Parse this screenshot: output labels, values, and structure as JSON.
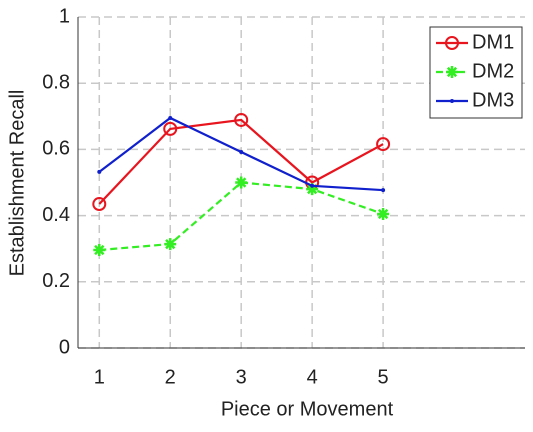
{
  "chart_data": {
    "type": "line",
    "xlabel": "Piece or Movement",
    "ylabel": "Establishment Recall",
    "x": [
      1,
      2,
      3,
      4,
      5
    ],
    "series": [
      {
        "name": "DM1",
        "color": "#e8141e",
        "marker": "circle",
        "dash": "solid",
        "values": [
          0.435,
          0.662,
          0.689,
          0.5,
          0.616
        ]
      },
      {
        "name": "DM2",
        "color": "#33ee22",
        "marker": "star",
        "dash": "dashed",
        "values": [
          0.296,
          0.314,
          0.5,
          0.48,
          0.405
        ]
      },
      {
        "name": "DM3",
        "color": "#1020cc",
        "marker": "dot",
        "dash": "solid",
        "values": [
          0.532,
          0.695,
          0.592,
          0.49,
          0.477
        ]
      }
    ],
    "xlim": [
      0.7,
      7
    ],
    "xticks": [
      1,
      2,
      3,
      4,
      5
    ],
    "ylim": [
      0,
      1
    ],
    "yticks": [
      0,
      0.2,
      0.4,
      0.6,
      0.8,
      1
    ],
    "grid": true,
    "legend": "top-right"
  }
}
